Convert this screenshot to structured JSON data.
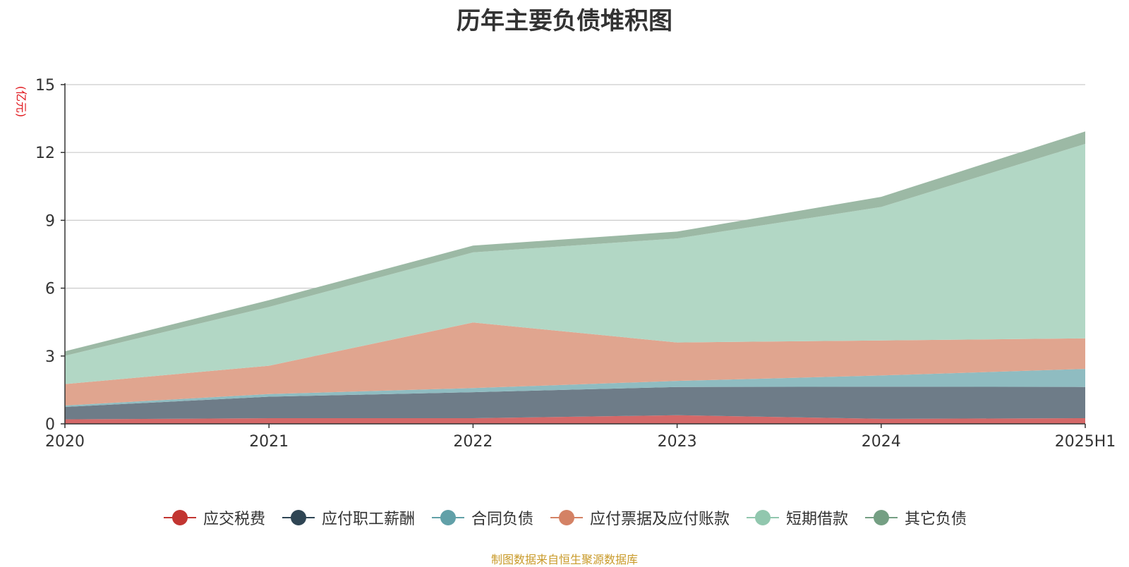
{
  "chart_data": {
    "type": "area",
    "stacked": true,
    "title": "历年主要负债堆积图",
    "unit_label": "(亿元)",
    "categories": [
      "2020",
      "2021",
      "2022",
      "2023",
      "2024",
      "2025H1"
    ],
    "ylim": [
      0,
      15
    ],
    "yticks": [
      0,
      3,
      6,
      9,
      12,
      15
    ],
    "grid": true,
    "legend_position": "bottom",
    "series": [
      {
        "name": "应交税费",
        "color": "#c23531",
        "fill": "#d46868",
        "values": [
          0.2,
          0.25,
          0.25,
          0.38,
          0.22,
          0.25
        ]
      },
      {
        "name": "应付职工薪酬",
        "color": "#2f4554",
        "fill": "#6e7c88",
        "values": [
          0.55,
          0.95,
          1.15,
          1.25,
          1.42,
          1.38
        ]
      },
      {
        "name": "合同负债",
        "color": "#61a0a8",
        "fill": "#8fbcc1",
        "values": [
          0.06,
          0.12,
          0.18,
          0.27,
          0.5,
          0.8
        ]
      },
      {
        "name": "应付票据及应付账款",
        "color": "#d48265",
        "fill": "#e0a58f",
        "values": [
          0.95,
          1.25,
          2.9,
          1.7,
          1.55,
          1.35
        ]
      },
      {
        "name": "短期借款",
        "color": "#91c7ae",
        "fill": "#b2d7c5",
        "values": [
          1.25,
          2.6,
          3.1,
          4.6,
          5.9,
          8.6
        ]
      },
      {
        "name": "其它负债",
        "color": "#749f83",
        "fill": "#9cb9a5",
        "values": [
          0.2,
          0.3,
          0.3,
          0.3,
          0.45,
          0.55
        ]
      }
    ]
  },
  "source_note": "制图数据来自恒生聚源数据库"
}
